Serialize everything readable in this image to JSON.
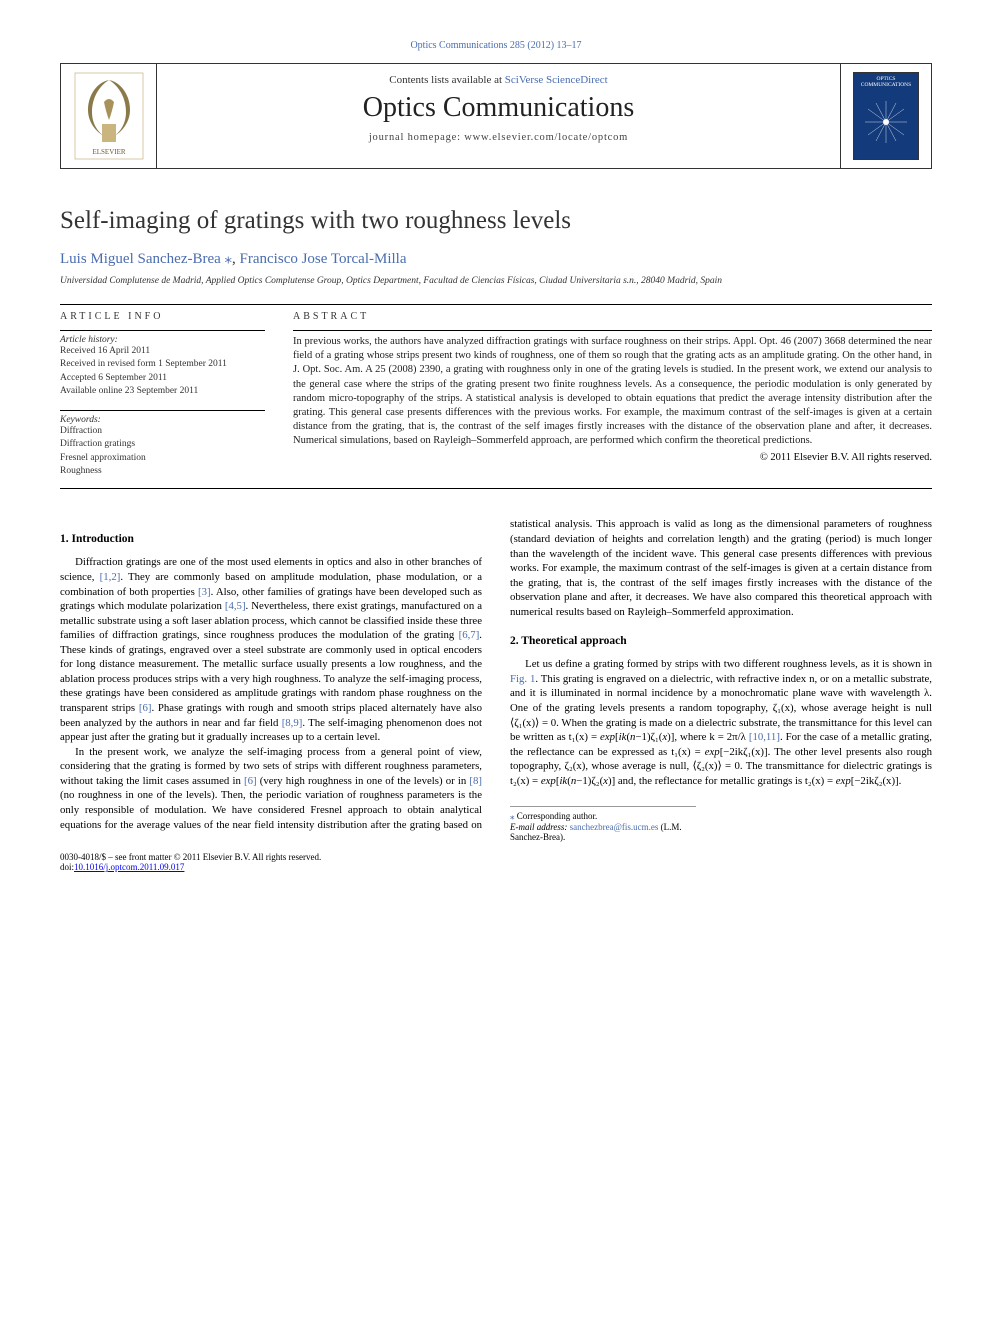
{
  "topLink": {
    "journal": "Optics Communications",
    "volRange": "285 (2012) 13–17",
    "color": "#4a6db0"
  },
  "header": {
    "contentsPrefix": "Contents lists available at ",
    "contentsLink": "SciVerse ScienceDirect",
    "journalName": "Optics Communications",
    "homepagePrefix": "journal homepage: ",
    "homepageUrl": "www.elsevier.com/locate/optcom",
    "coverTitle": "OPTICS COMMUNICATIONS"
  },
  "article": {
    "title": "Self-imaging of gratings with two roughness levels",
    "authors": [
      {
        "name": "Luis Miguel Sanchez-Brea",
        "corresponding": true
      },
      {
        "name": "Francisco Jose Torcal-Milla",
        "corresponding": false
      }
    ],
    "authorsSeparator": ", ",
    "affiliation": "Universidad Complutense de Madrid, Applied Optics Complutense Group, Optics Department, Facultad de Ciencias Físicas, Ciudad Universitaria s.n., 28040 Madrid, Spain"
  },
  "info": {
    "head": "ARTICLE INFO",
    "historyHead": "Article history:",
    "history": [
      "Received 16 April 2011",
      "Received in revised form 1 September 2011",
      "Accepted 6 September 2011",
      "Available online 23 September 2011"
    ],
    "keywordsHead": "Keywords:",
    "keywords": [
      "Diffraction",
      "Diffraction gratings",
      "Fresnel approximation",
      "Roughness"
    ]
  },
  "abstractSection": {
    "head": "ABSTRACT",
    "text": "In previous works, the authors have analyzed diffraction gratings with surface roughness on their strips. Appl. Opt. 46 (2007) 3668 determined the near field of a grating whose strips present two kinds of roughness, one of them so rough that the grating acts as an amplitude grating. On the other hand, in J. Opt. Soc. Am. A 25 (2008) 2390, a grating with roughness only in one of the grating levels is studied. In the present work, we extend our analysis to the general case where the strips of the grating present two finite roughness levels. As a consequence, the periodic modulation is only generated by random micro-topography of the strips. A statistical analysis is developed to obtain equations that predict the average intensity distribution after the grating. This general case presents differences with the previous works. For example, the maximum contrast of the self-images is given at a certain distance from the grating, that is, the contrast of the self images firstly increases with the distance of the observation plane and after, it decreases. Numerical simulations, based on Rayleigh–Sommerfeld approach, are performed which confirm the theoretical predictions.",
    "copyright": "© 2011 Elsevier B.V. All rights reserved."
  },
  "body": {
    "sections": [
      {
        "heading": "1. Introduction",
        "paragraphs": [
          "Diffraction gratings are one of the most used elements in optics and also in other branches of science, [1,2]. They are commonly based on amplitude modulation, phase modulation, or a combination of both properties [3]. Also, other families of gratings have been developed such as gratings which modulate polarization [4,5]. Nevertheless, there exist gratings, manufactured on a metallic substrate using a soft laser ablation process, which cannot be classified inside these three families of diffraction gratings, since roughness produces the modulation of the grating [6,7]. These kinds of gratings, engraved over a steel substrate are commonly used in optical encoders for long distance measurement. The metallic surface usually presents a low roughness, and the ablation process produces strips with a very high roughness. To analyze the self-imaging process, these gratings have been considered as amplitude gratings with random phase roughness on the transparent strips [6]. Phase gratings with rough and smooth strips placed alternately have also been analyzed by the authors in near and far field [8,9]. The self-imaging phenomenon does not appear just after the grating but it gradually increases up to a certain level.",
          "In the present work, we analyze the self-imaging process from a general point of view, considering that the grating is formed by two sets of strips with different roughness parameters, without taking the limit cases assumed in [6] (very high roughness in one of the levels) or in [8] (no roughness in one of the levels). Then, the periodic variation of roughness parameters is the only responsible of modulation. We have considered Fresnel approach to obtain analytical equations for the average values of the near field intensity distribution after the grating based on statistical analysis. This approach is valid as long as the dimensional parameters of roughness (standard deviation of heights and correlation length) and the grating (period) is much longer than the wavelength of the incident wave. This general case presents differences with previous works. For example, the maximum contrast of the self-images is given at a certain distance from the grating, that is, the contrast of the self images firstly increases with the distance of the observation plane and after, it decreases. We have also compared this theoretical approach with numerical results based on Rayleigh–Sommerfeld approximation."
        ]
      },
      {
        "heading": "2. Theoretical approach",
        "paragraphs": [
          "Let us define a grating formed by strips with two different roughness levels, as it is shown in Fig. 1. This grating is engraved on a dielectric, with refractive index n, or on a metallic substrate, and it is illuminated in normal incidence by a monochromatic plane wave with wavelength λ. One of the grating levels presents a random topography, ζ₁(x), whose average height is null ⟨ζ₁(x)⟩ = 0. When the grating is made on a dielectric substrate, the transmittance for this level can be written as t₁(x) = exp[ik(n−1)ζ₁(x)], where k = 2π/λ [10,11]. For the case of a metallic grating, the reflectance can be expressed as t₁(x) = exp[−2ikζ₁(x)]. The other level presents also rough topography, ζ₂(x), whose average is null, ⟨ζ₂(x)⟩ = 0. The transmittance for dielectric gratings is t₂(x) = exp[ik(n−1)ζ₂(x)] and, the reflectance for metallic gratings is t₂(x) = exp[−2ikζ₂(x)]."
        ]
      }
    ],
    "refLinks": [
      "[1,2]",
      "[3]",
      "[4,5]",
      "[6,7]",
      "[6]",
      "[8,9]",
      "[6]",
      "[8]",
      "Fig. 1",
      "[10,11]"
    ]
  },
  "footnote": {
    "correspLabel": "Corresponding author.",
    "emailLabel": "E-mail address:",
    "email": "sanchezbrea@fis.ucm.es",
    "emailSuffix": "(L.M. Sanchez-Brea)."
  },
  "footer": {
    "issn": "0030-4018/$ – see front matter © 2011 Elsevier B.V. All rights reserved.",
    "doiPrefix": "doi:",
    "doi": "10.1016/j.optcom.2011.09.017"
  },
  "style": {
    "linkColor": "#4a6db0",
    "textColor": "#000000",
    "coverBg": "#133a7a",
    "ruleColor": "#000000",
    "bodyFontSize": 10.8,
    "abstractFontSize": 10.5,
    "titleFontSize": 25
  }
}
